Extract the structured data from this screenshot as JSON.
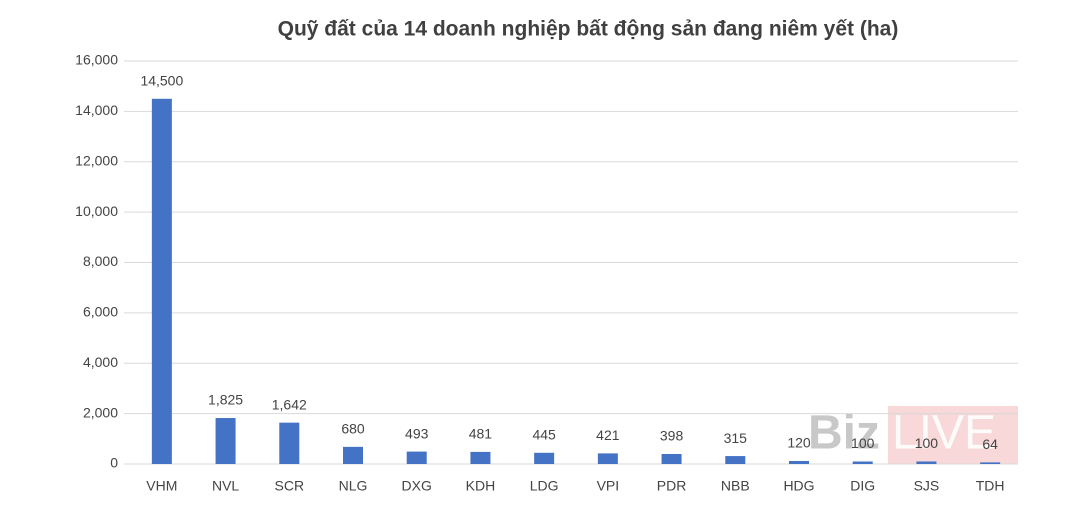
{
  "chart_data": {
    "type": "bar",
    "title": "Quỹ đất của 14 doanh nghiệp bất động sản đang niêm yết (ha)",
    "categories": [
      "VHM",
      "NVL",
      "SCR",
      "NLG",
      "DXG",
      "KDH",
      "LDG",
      "VPI",
      "PDR",
      "NBB",
      "HDG",
      "DIG",
      "SJS",
      "TDH"
    ],
    "values": [
      14500,
      1825,
      1642,
      680,
      493,
      481,
      445,
      421,
      398,
      315,
      120,
      100,
      100,
      64
    ],
    "value_labels": [
      "14,500",
      "1,825",
      "1,642",
      "680",
      "493",
      "481",
      "445",
      "421",
      "398",
      "315",
      "120",
      "100",
      "100",
      "64"
    ],
    "color": "#4472c4",
    "ylim": [
      0,
      16000
    ],
    "yticks": [
      0,
      {
        "value": 2000,
        "label": "2,000"
      },
      {
        "value": 4000,
        "label": "4,000"
      },
      {
        "value": 6000,
        "label": "6,000"
      },
      {
        "value": 8000,
        "label": "8,000"
      },
      {
        "value": 10000,
        "label": "10,000"
      },
      {
        "value": 12000,
        "label": "12,000"
      },
      {
        "value": 14000,
        "label": "14,000"
      },
      {
        "value": 16000,
        "label": "16,000"
      }
    ],
    "grid": true,
    "watermark": [
      "Biz",
      "LIVE"
    ]
  }
}
